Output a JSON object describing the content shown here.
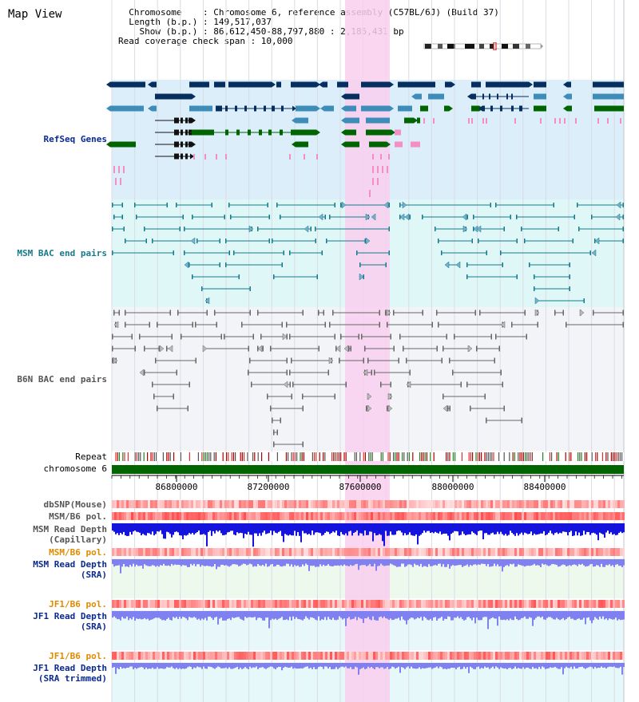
{
  "header": {
    "title": "Map View",
    "info_lines": [
      "  Chromosome    : Chromosome 6, reference assembly (C57BL/6J) (Build 37)",
      "  Length (b.p.) : 149,517,037",
      "    Show (b.p.) : 86,612,450-88,797,880 : 2,185,431 bp",
      "Read coverage check span : 10,000"
    ]
  },
  "tracks": {
    "refseq_label": "RefSeq Genes",
    "msm_bac_label": "MSM BAC end pairs",
    "b6n_bac_label": "B6N BAC end pairs",
    "repeat_label": "Repeat",
    "chromosome_label": "chromosome 6",
    "dbsnp_label": "dbSNP(Mouse)",
    "msm_pol_label": "MSM/B6 pol.",
    "msm_depth_cap_label": "MSM Read Depth\n(Capillary)",
    "msm_pol2_label": "MSM/B6 pol.",
    "msm_depth_sra_label": "MSM Read Depth\n(SRA)",
    "jf1_pol_label": "JF1/B6 pol.",
    "jf1_depth_label": "JF1 Read Depth\n(SRA)",
    "jf1_pol2_label": "JF1/B6 pol.",
    "jf1_depth_trim_label": "JF1 Read Depth\n(SRA trimmed)"
  },
  "axis": {
    "ticks": [
      86800000,
      87200000,
      87600000,
      88000000,
      88400000
    ],
    "tick_labels": [
      "86800000",
      "87200000",
      "87600000",
      "88000000",
      "88400000"
    ]
  },
  "colors": {
    "refseq_bg": "#dbeefa",
    "msm_bg": "#e0f7f7",
    "b6n_bg": "#f2f4f8",
    "highlight": "#f9cfef",
    "dark_navy": "#062f5f",
    "steel_blue": "#3d8db8",
    "green": "#006400",
    "pink": "#f48fc4",
    "teal": "#157a8c",
    "grey": "#666666",
    "depth_blue": "#1414dc",
    "depth_light": "#8080f0",
    "label_blue": "#0b2a90",
    "label_orange": "#e08a00"
  }
}
